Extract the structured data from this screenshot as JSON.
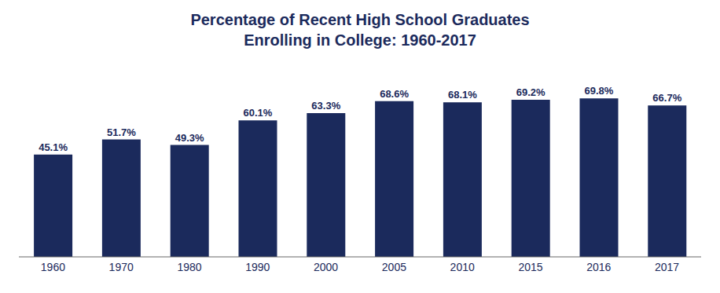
{
  "chart_data": {
    "type": "bar",
    "title": "Percentage of Recent High School Graduates\nEnrolling in College: 1960-2017",
    "categories": [
      "1960",
      "1970",
      "1980",
      "1990",
      "2000",
      "2005",
      "2010",
      "2015",
      "2016",
      "2017"
    ],
    "values": [
      45.1,
      51.7,
      49.3,
      60.1,
      63.3,
      68.6,
      68.1,
      69.2,
      69.8,
      66.7
    ],
    "value_labels": [
      "45.1%",
      "51.7%",
      "49.3%",
      "60.1%",
      "63.3%",
      "68.6%",
      "68.1%",
      "69.2%",
      "69.8%",
      "66.7%"
    ],
    "data_labels": true,
    "color": "#1B2A5C",
    "ylim": [
      0,
      82
    ],
    "grid": false,
    "tick_labels": "x"
  }
}
